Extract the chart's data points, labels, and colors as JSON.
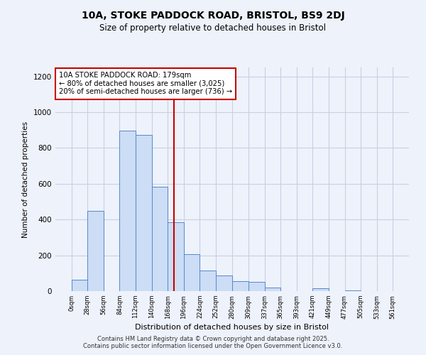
{
  "title": "10A, STOKE PADDOCK ROAD, BRISTOL, BS9 2DJ",
  "subtitle": "Size of property relative to detached houses in Bristol",
  "xlabel": "Distribution of detached houses by size in Bristol",
  "ylabel": "Number of detached properties",
  "bar_color": "#ccddf5",
  "bar_edge_color": "#5588cc",
  "background_color": "#eef2fb",
  "grid_color": "#c8d0e0",
  "vline_x": 179,
  "vline_color": "#cc0000",
  "annotation_title": "10A STOKE PADDOCK ROAD: 179sqm",
  "annotation_line1": "← 80% of detached houses are smaller (3,025)",
  "annotation_line2": "20% of semi-detached houses are larger (736) →",
  "annotation_box_color": "#ffffff",
  "annotation_box_edge": "#cc0000",
  "bins": [
    0,
    28,
    56,
    84,
    112,
    140,
    168,
    196,
    224,
    252,
    280,
    309,
    337,
    365,
    393,
    421,
    449,
    477,
    505,
    533,
    561
  ],
  "counts": [
    65,
    450,
    0,
    895,
    875,
    585,
    385,
    205,
    115,
    88,
    55,
    50,
    20,
    0,
    0,
    15,
    0,
    5,
    0,
    0
  ],
  "ylim": [
    0,
    1250
  ],
  "yticks": [
    0,
    200,
    400,
    600,
    800,
    1000,
    1200
  ],
  "footer1": "Contains HM Land Registry data © Crown copyright and database right 2025.",
  "footer2": "Contains public sector information licensed under the Open Government Licence v3.0."
}
